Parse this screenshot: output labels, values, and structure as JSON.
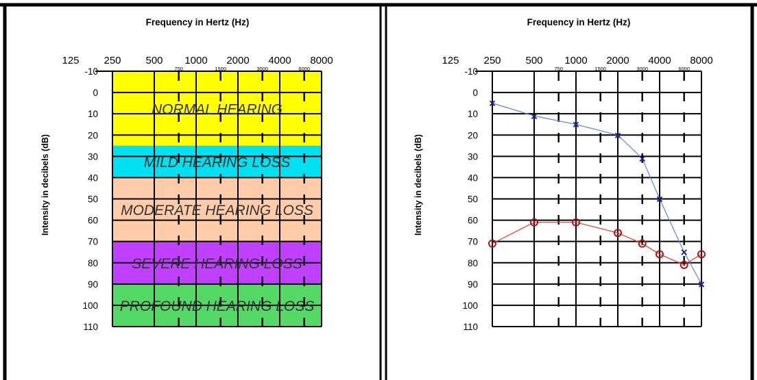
{
  "colors": {
    "blue_series": "#1d1d8c",
    "red_series": "#b3120f",
    "band_normal": "#ffff00",
    "band_mild": "#00e0f0",
    "band_moderate": "#ffccaa",
    "band_severe": "#c040ff",
    "band_profound": "#55d966"
  },
  "chart_data": [
    {
      "type": "area",
      "title": "Frequency in Hertz (Hz)",
      "xlabel": "Frequency in Hertz (Hz)",
      "ylabel": "Intensity in decibels (dB)",
      "x_ticks_major": [
        "125",
        "250",
        "500",
        "1000",
        "2000",
        "4000",
        "8000"
      ],
      "x_ticks_minor": [
        "750",
        "1500",
        "3000",
        "6000"
      ],
      "y_ticks": [
        "-10",
        "0",
        "10",
        "20",
        "30",
        "40",
        "50",
        "60",
        "70",
        "80",
        "90",
        "100",
        "110"
      ],
      "ylim": [
        -10,
        110
      ],
      "y_inverted": true,
      "grid": true,
      "bands": [
        {
          "label": "NORMAL HEARING",
          "from": -10,
          "to": 25
        },
        {
          "label": "MILD HEARING LOSS",
          "from": 25,
          "to": 40
        },
        {
          "label": "MODERATE HEARING LOSS",
          "from": 40,
          "to": 70
        },
        {
          "label": "SEVERE HEARING LOSS",
          "from": 70,
          "to": 90
        },
        {
          "label": "PROFOUND HEARING LOSS",
          "from": 90,
          "to": 110
        }
      ]
    },
    {
      "type": "line",
      "title": "Frequency in Hertz (Hz)",
      "xlabel": "Frequency in Hertz (Hz)",
      "ylabel": "Intensity in decibels (dB)",
      "x_ticks_major": [
        "125",
        "250",
        "500",
        "1000",
        "2000",
        "4000",
        "8000"
      ],
      "x_ticks_minor": [
        "750",
        "1500",
        "3000",
        "6000"
      ],
      "y_ticks": [
        "-10",
        "0",
        "10",
        "20",
        "30",
        "40",
        "50",
        "60",
        "70",
        "80",
        "90",
        "100",
        "110"
      ],
      "ylim": [
        -10,
        110
      ],
      "y_inverted": true,
      "grid": true,
      "series": [
        {
          "marker": "x",
          "x": [
            250,
            500,
            1000,
            2000,
            3000,
            4000,
            6000,
            8000
          ],
          "y": [
            5,
            11,
            15,
            20,
            31,
            50,
            75,
            90
          ]
        },
        {
          "marker": "o",
          "x": [
            250,
            500,
            1000,
            2000,
            3000,
            4000,
            6000,
            8000
          ],
          "y": [
            71,
            61,
            61,
            66,
            71,
            76,
            81,
            76
          ]
        }
      ]
    }
  ]
}
